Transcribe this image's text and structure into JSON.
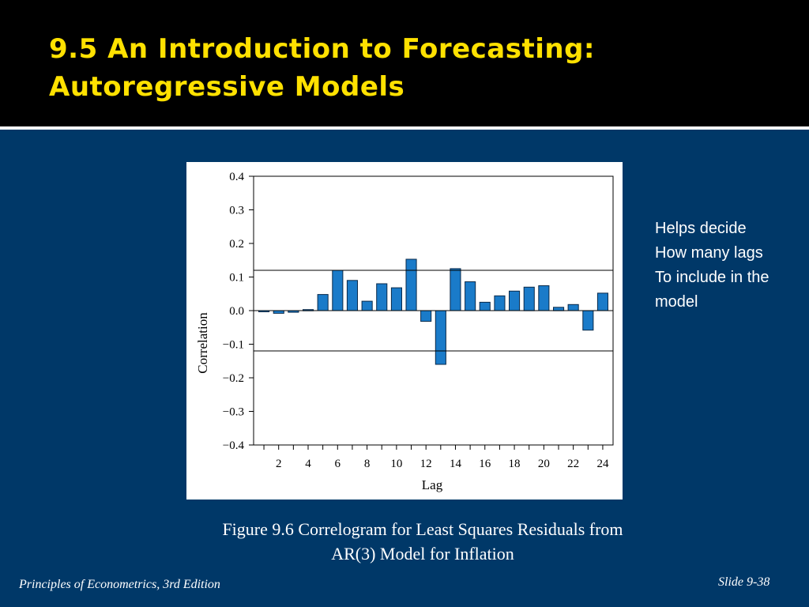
{
  "slide": {
    "title": "9.5 An Introduction to Forecasting: Autoregressive Models",
    "side_note": [
      "Helps decide",
      "How many lags",
      "To include in the",
      "model"
    ],
    "caption_line1": "Figure 9.6  Correlogram for Least Squares Residuals from",
    "caption_line2": "AR(3) Model for Inflation",
    "footer_left": "Principles of Econometrics, 3rd Edition",
    "footer_right": "Slide 9-38"
  },
  "colors": {
    "background": "#003868",
    "title_band": "#000000",
    "title_text": "#ffe100",
    "bar_fill": "#1a7bc9",
    "bar_stroke": "#0a2a4a"
  },
  "chart_data": {
    "type": "bar",
    "xlabel": "Lag",
    "ylabel": "Correlation",
    "ylim": [
      -0.4,
      0.4
    ],
    "yticks": [
      0.4,
      0.3,
      0.2,
      0.1,
      0.0,
      -0.1,
      -0.2,
      -0.3,
      -0.4
    ],
    "ytick_labels": [
      "0.4",
      "0.3",
      "0.2",
      "0.1",
      "0.0",
      "−0.1",
      "−0.2",
      "−0.3",
      "−0.4"
    ],
    "xticks": [
      2,
      4,
      6,
      8,
      10,
      12,
      14,
      16,
      18,
      20,
      22,
      24
    ],
    "categories": [
      1,
      2,
      3,
      4,
      5,
      6,
      7,
      8,
      9,
      10,
      11,
      12,
      13,
      14,
      15,
      16,
      17,
      18,
      19,
      20,
      21,
      22,
      23,
      24
    ],
    "values": [
      -0.003,
      -0.008,
      -0.005,
      0.003,
      0.048,
      0.12,
      0.09,
      0.028,
      0.08,
      0.068,
      0.153,
      -0.032,
      -0.16,
      0.125,
      0.086,
      0.025,
      0.044,
      0.058,
      0.07,
      0.074,
      0.01,
      0.018,
      -0.058,
      0.052
    ],
    "significance_bounds": [
      0.12,
      -0.12
    ],
    "grid": false,
    "legend": false
  }
}
